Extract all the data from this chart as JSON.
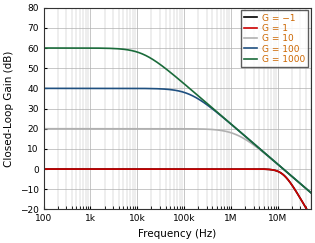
{
  "xlabel": "Frequency (Hz)",
  "ylabel": "Closed-Loop Gain (dB)",
  "xlim_log": [
    2,
    7.7
  ],
  "ylim": [
    -20,
    80
  ],
  "yticks": [
    -20,
    -10,
    0,
    10,
    20,
    30,
    40,
    50,
    60,
    70,
    80
  ],
  "background_color": "#ffffff",
  "grid_color": "#b0b0b0",
  "series": [
    {
      "label": "G = −1",
      "color": "#000000",
      "gain_linear": -1,
      "GBW": 13000000
    },
    {
      "label": "G = 1",
      "color": "#cc0000",
      "gain_linear": 1,
      "GBW": 13000000
    },
    {
      "label": "G = 10",
      "color": "#b0b0b0",
      "gain_linear": 10,
      "GBW": 13000000
    },
    {
      "label": "G = 100",
      "color": "#1f5080",
      "gain_linear": 100,
      "GBW": 13000000
    },
    {
      "label": "G = 1000",
      "color": "#1a6b3a",
      "gain_linear": 1000,
      "GBW": 13000000
    }
  ],
  "legend_loc": "upper right",
  "legend_fontsize": 6.5,
  "tick_fontsize": 6.5,
  "label_fontsize": 7.5,
  "line_width": 1.2,
  "xtick_labels": [
    "100",
    "1k",
    "10k",
    "100k",
    "1M",
    "10M"
  ],
  "xtick_values": [
    100,
    1000,
    10000,
    100000,
    1000000,
    10000000
  ]
}
